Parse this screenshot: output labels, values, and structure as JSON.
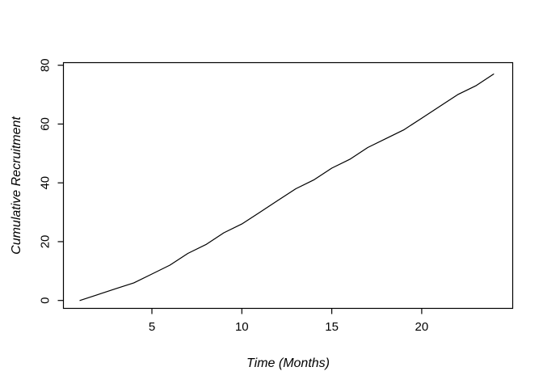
{
  "window": {
    "background": "#ffffff"
  },
  "chart_data": {
    "type": "line",
    "title": "",
    "xlabel": "Time (Months)",
    "ylabel": "Cumulative Recruitment",
    "x": [
      1,
      2,
      3,
      4,
      5,
      6,
      7,
      8,
      9,
      10,
      11,
      12,
      13,
      14,
      15,
      16,
      17,
      18,
      19,
      20,
      21,
      22,
      23,
      24
    ],
    "y": [
      0,
      2,
      4,
      6,
      9,
      12,
      16,
      19,
      23,
      26,
      30,
      34,
      38,
      41,
      45,
      48,
      52,
      55,
      58,
      62,
      66,
      70,
      73,
      77
    ],
    "xticks": [
      5,
      10,
      15,
      20
    ],
    "yticks": [
      0,
      20,
      40,
      60,
      80
    ],
    "xlim": [
      1,
      24
    ],
    "ylim": [
      0,
      80
    ],
    "grid": false,
    "legend": "none",
    "line_color": "#000000",
    "axis_color": "#000000",
    "background_color": "#ffffff",
    "label_style": "italic",
    "ytick_label_rotation": -90
  }
}
